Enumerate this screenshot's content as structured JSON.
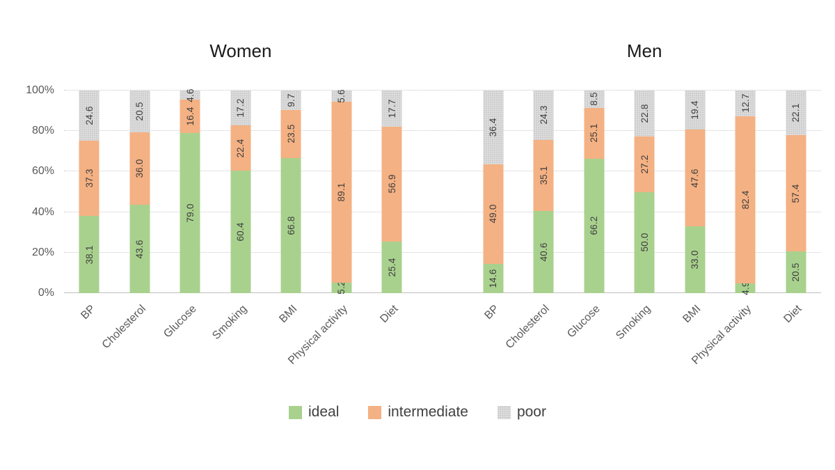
{
  "chart_data": {
    "type": "bar",
    "stacked": true,
    "percent_scale": true,
    "categories": [
      "BP",
      "Cholesterol",
      "Glucose",
      "Smoking",
      "BMI",
      "Physical activity",
      "Diet"
    ],
    "series_names": [
      "ideal",
      "intermediate",
      "poor"
    ],
    "colors": {
      "ideal": "#a9d18e",
      "intermediate": "#f4b183",
      "poor": "#dedede"
    },
    "groups": [
      {
        "title": "Women",
        "series": [
          {
            "name": "ideal",
            "values": [
              38.1,
              43.6,
              79.0,
              60.4,
              66.8,
              5.2,
              25.4
            ]
          },
          {
            "name": "intermediate",
            "values": [
              37.3,
              36.0,
              16.4,
              22.4,
              23.5,
              89.1,
              56.9
            ]
          },
          {
            "name": "poor",
            "values": [
              24.6,
              20.5,
              4.6,
              17.2,
              9.7,
              5.6,
              17.7
            ]
          }
        ]
      },
      {
        "title": "Men",
        "series": [
          {
            "name": "ideal",
            "values": [
              14.6,
              40.6,
              66.2,
              50.0,
              33.0,
              4.9,
              20.5
            ]
          },
          {
            "name": "intermediate",
            "values": [
              49.0,
              35.1,
              25.1,
              27.2,
              47.6,
              82.4,
              57.4
            ]
          },
          {
            "name": "poor",
            "values": [
              36.4,
              24.3,
              8.5,
              22.8,
              19.4,
              12.7,
              22.1
            ]
          }
        ]
      }
    ],
    "y_axis": {
      "range": [
        0,
        100
      ],
      "ticks": [
        "0%",
        "20%",
        "40%",
        "60%",
        "80%",
        "100%"
      ],
      "grid": true
    },
    "legend": {
      "position": "bottom",
      "entries": [
        "ideal",
        "intermediate",
        "poor"
      ]
    },
    "value_label_format": "one_decimal",
    "text_color": "#404040"
  }
}
